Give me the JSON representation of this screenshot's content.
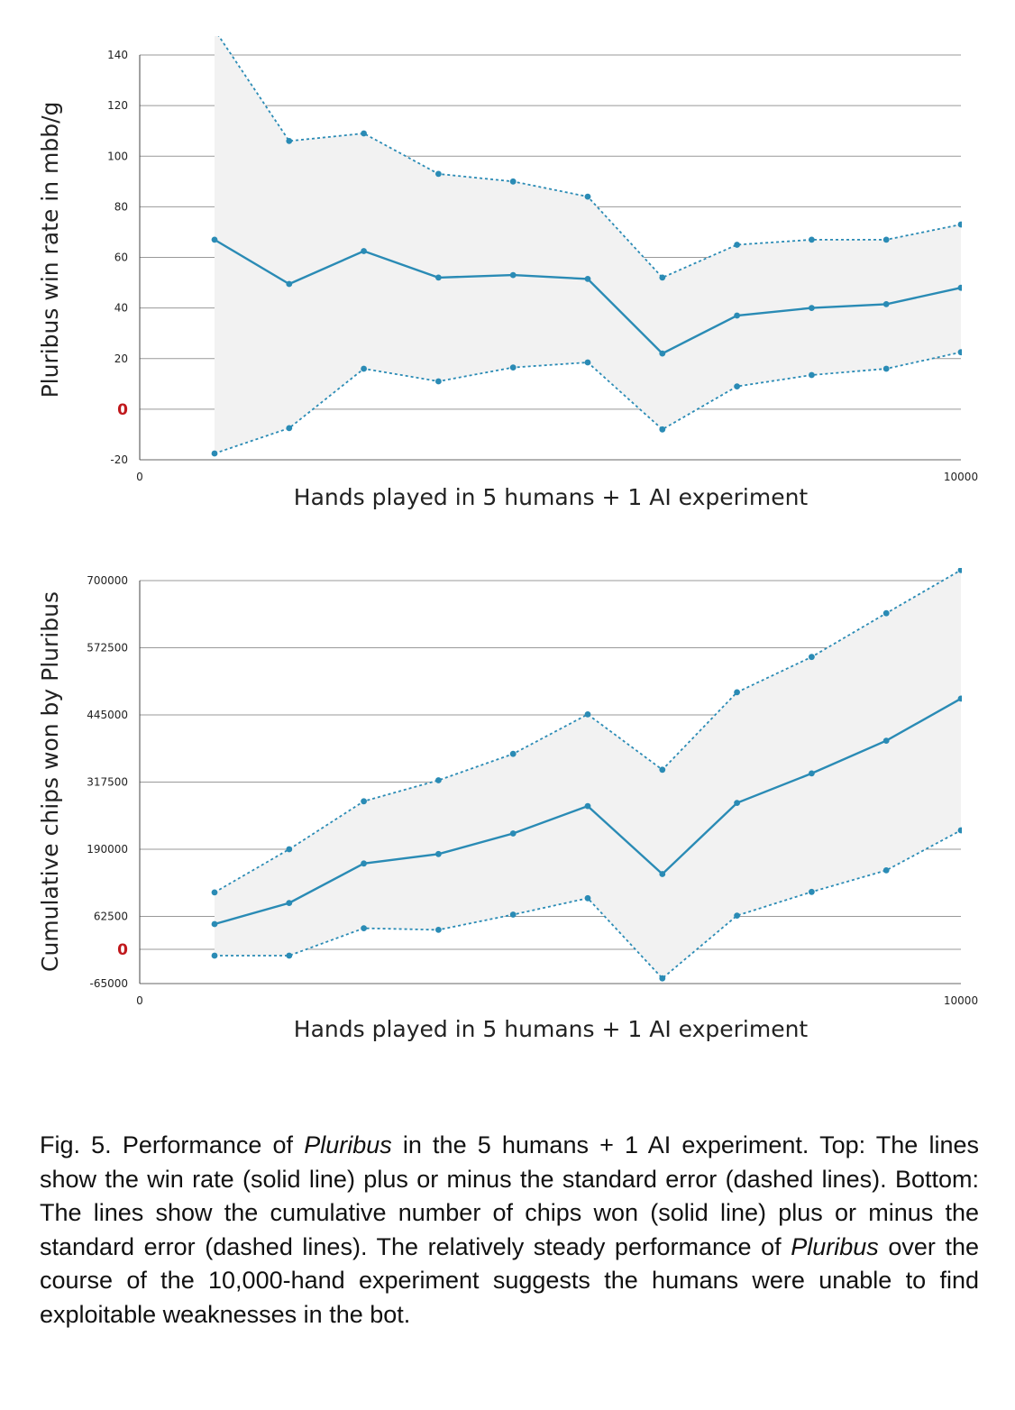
{
  "chart_data": [
    {
      "type": "line",
      "ylabel": "Pluribus win rate in mbb/g",
      "xlabel": "Hands played in 5 humans + 1 AI experiment",
      "xlim": [
        0,
        10000
      ],
      "ylim": [
        -20,
        140
      ],
      "x_tick_labels": [
        "0",
        "10000"
      ],
      "y_ticks": [
        140,
        120,
        100,
        80,
        60,
        40,
        20,
        0,
        -20
      ],
      "y_tick_labels": [
        "140",
        "120",
        "100",
        "80",
        "60",
        "40",
        "20",
        "0",
        "-20"
      ],
      "zero_label": "0",
      "grid": true,
      "x": [
        1000,
        2000,
        3000,
        4000,
        5000,
        6000,
        7000,
        8000,
        9000,
        10000,
        11000
      ],
      "series": [
        {
          "name": "Pluribus win rate",
          "style": "solid",
          "values": [
            67,
            49.5,
            62.5,
            52,
            53,
            51.5,
            22,
            37,
            40,
            41.5,
            48
          ]
        },
        {
          "name": "+ standard error",
          "style": "dashed",
          "values": [
            150,
            106,
            109,
            93,
            90,
            84,
            52,
            65,
            67,
            67,
            73
          ]
        },
        {
          "name": "- standard error",
          "style": "dashed",
          "values": [
            -17.5,
            -7.5,
            16,
            11,
            16.5,
            18.5,
            -8,
            9,
            13.5,
            16,
            22.5
          ]
        }
      ]
    },
    {
      "type": "line",
      "ylabel": "Cumulative chips won by Pluribus",
      "xlabel": "Hands played in 5 humans + 1 AI experiment",
      "xlim": [
        0,
        10000
      ],
      "ylim": [
        -65000,
        700000
      ],
      "x_tick_labels": [
        "0",
        "10000"
      ],
      "y_ticks": [
        700000,
        572500,
        445000,
        317500,
        190000,
        62500,
        0,
        -65000
      ],
      "y_tick_labels": [
        "700000",
        "572500",
        "445000",
        "317500",
        "190000",
        "62500",
        "0",
        "-65000"
      ],
      "zero_label": "0",
      "grid": true,
      "x": [
        1000,
        2000,
        3000,
        4000,
        5000,
        6000,
        7000,
        8000,
        9000,
        10000,
        11000
      ],
      "series": [
        {
          "name": "Cumulative chips won",
          "style": "solid",
          "values": [
            48000,
            88000,
            163000,
            181000,
            220000,
            272000,
            143000,
            278000,
            334000,
            396000,
            476000
          ]
        },
        {
          "name": "+ standard error",
          "style": "dashed",
          "values": [
            108000,
            190000,
            281000,
            321000,
            371000,
            446000,
            341000,
            488000,
            555000,
            638000,
            720000
          ]
        },
        {
          "name": "- standard error",
          "style": "dashed",
          "values": [
            -12000,
            -12000,
            40000,
            37000,
            66000,
            97000,
            -55000,
            64000,
            109000,
            150000,
            226000
          ]
        }
      ]
    }
  ],
  "caption": {
    "fig_label": "Fig. 5. Performance of ",
    "fig_italic": "Pluribus",
    "fig_rest": " in the 5 humans + 1 AI experiment.",
    "top_label": "Top:",
    "top_text": " The lines show the win rate (solid line) plus or minus the standard error (dashed lines). ",
    "bottom_label": "Bottom:",
    "bottom_text": " The lines show the cumulative number of chips won (solid line) plus or minus the standard error (dashed lines). The relatively steady performance of ",
    "pluribus_italic": "Pluribus",
    "tail_text": " over the course of the 10,000-hand experiment suggests the humans were unable to find exploitable weaknesses in the bot."
  },
  "colors": {
    "line": "#2a8bb5",
    "band": "#f2f2f2",
    "grid": "#999999",
    "zero_label": "#c0181c"
  }
}
